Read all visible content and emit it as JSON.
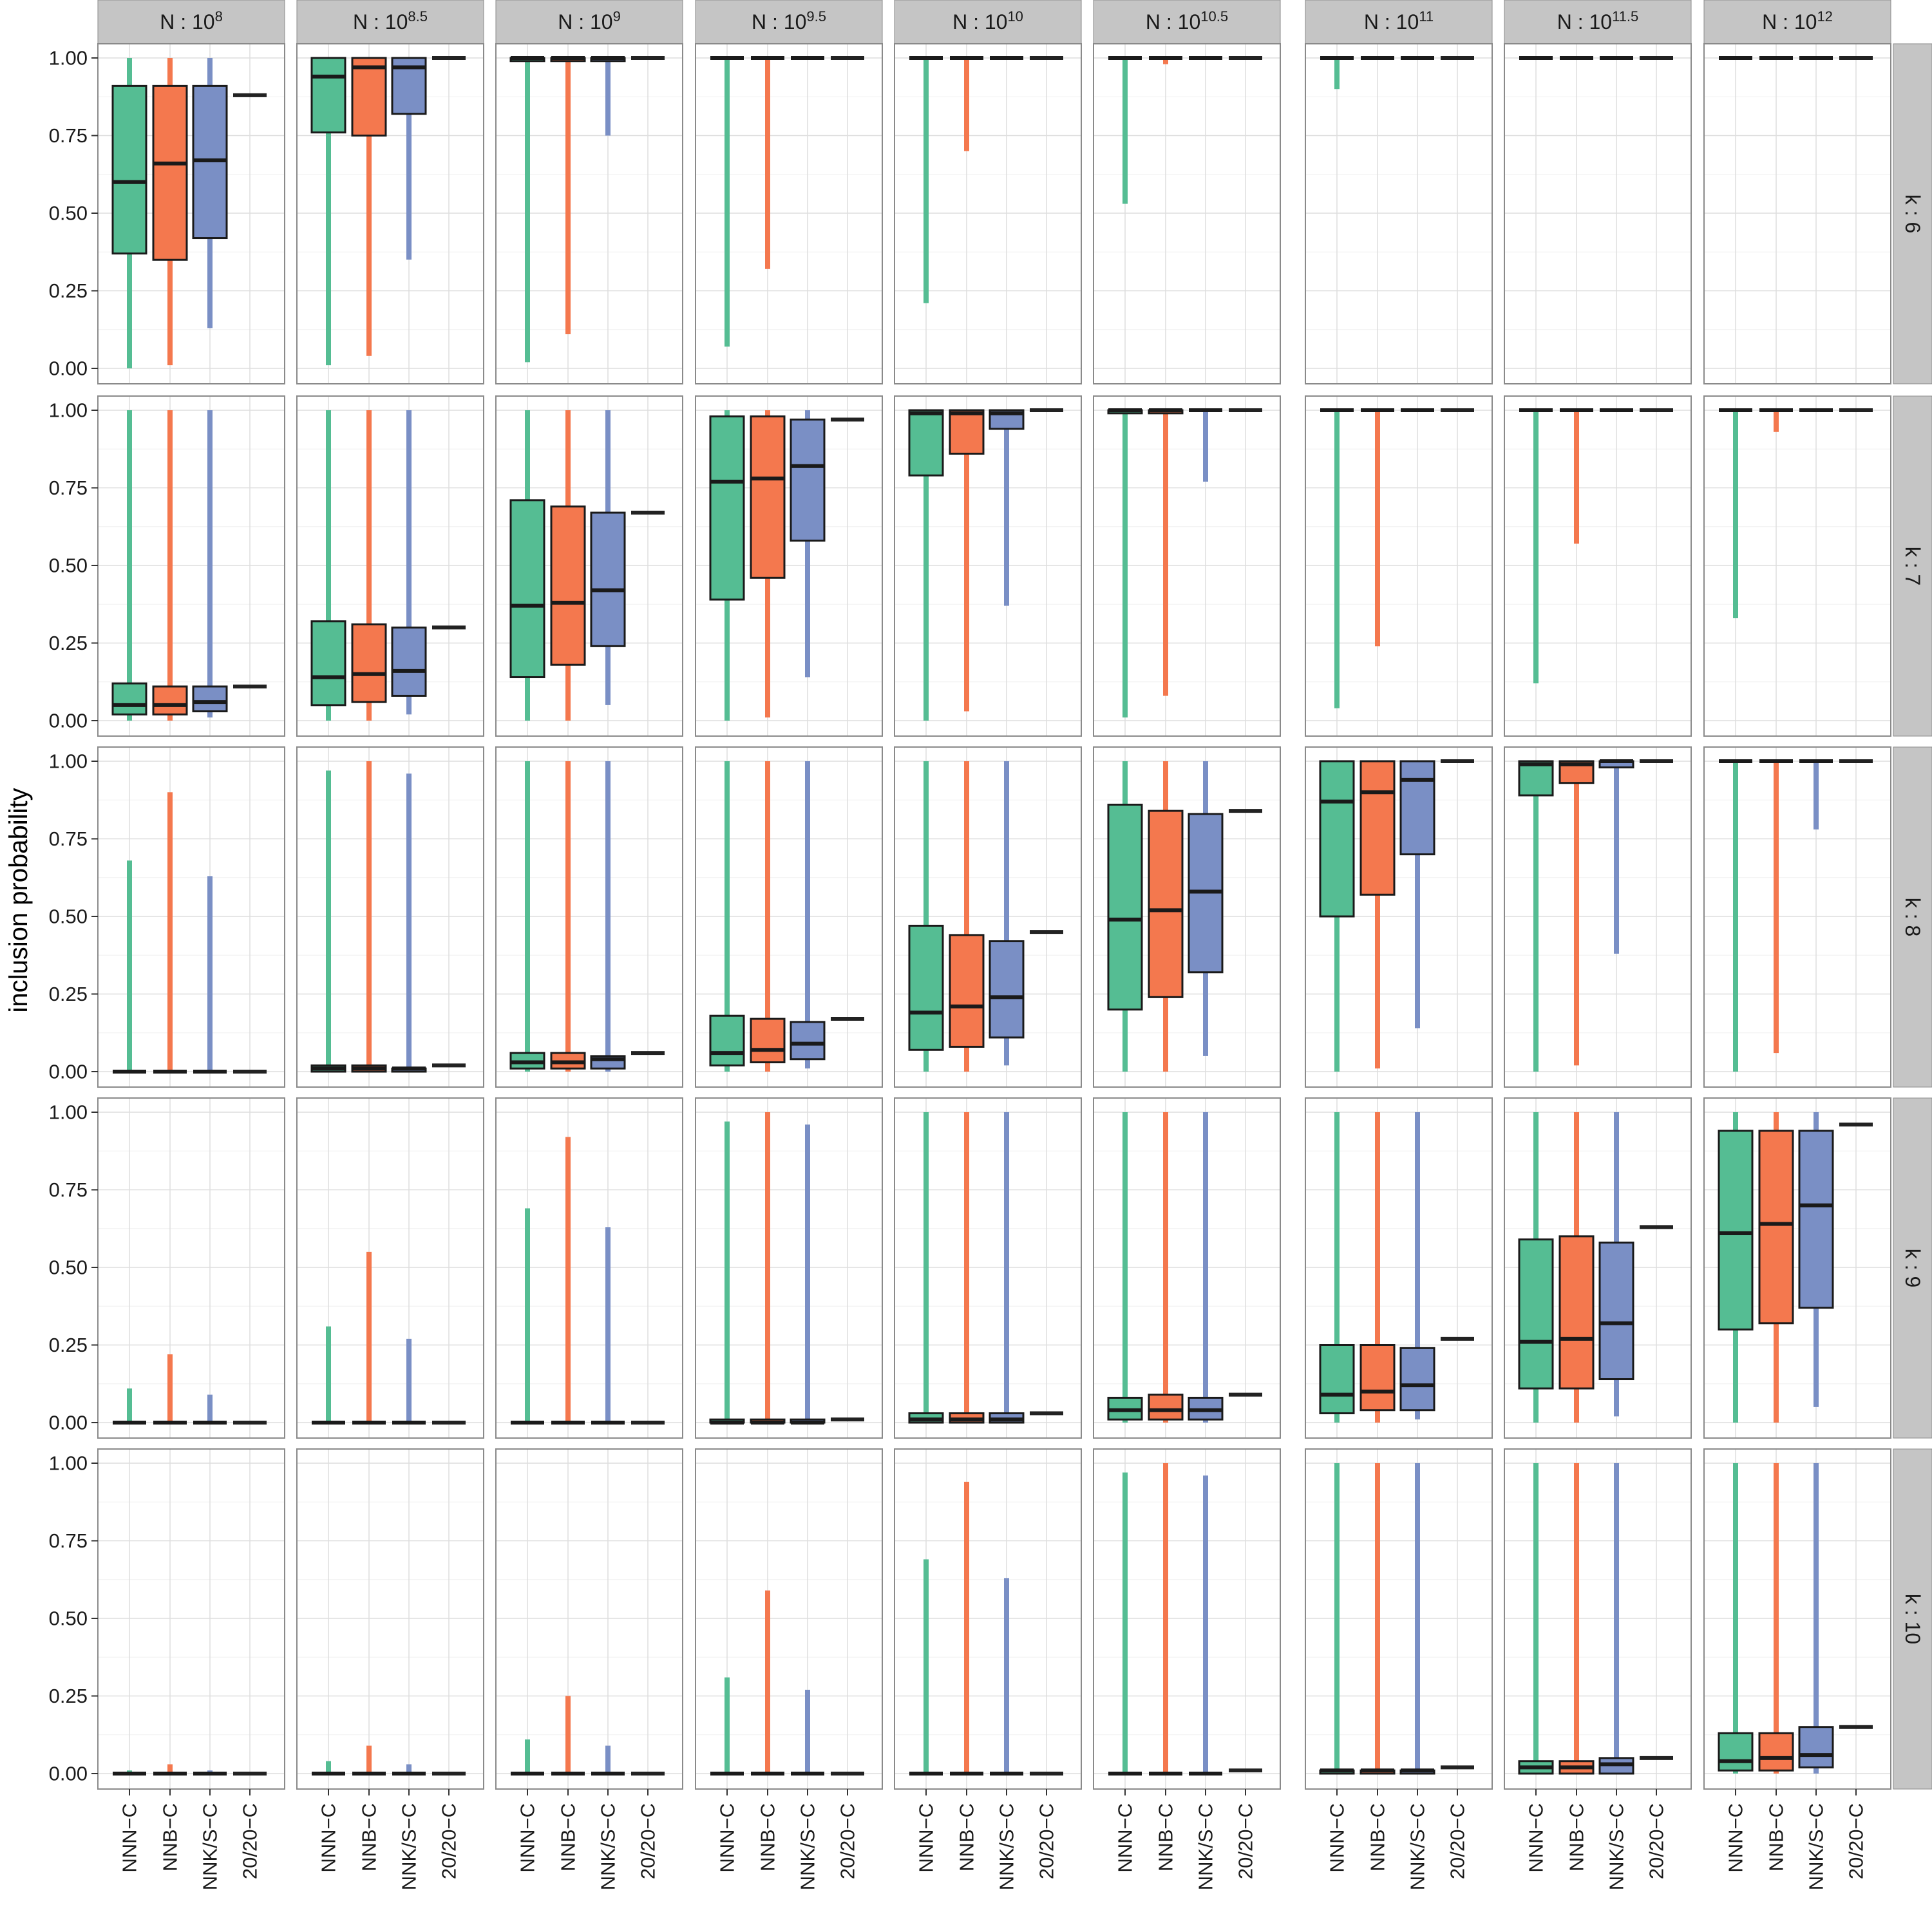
{
  "chart_data": {
    "type": "boxplot",
    "facets": {
      "columns_prefix": "N : ",
      "columns": [
        {
          "base": "10",
          "exp": "8"
        },
        {
          "base": "10",
          "exp": "8.5"
        },
        {
          "base": "10",
          "exp": "9"
        },
        {
          "base": "10",
          "exp": "9.5"
        },
        {
          "base": "10",
          "exp": "10"
        },
        {
          "base": "10",
          "exp": "10.5"
        },
        {
          "base": "10",
          "exp": "11"
        },
        {
          "base": "10",
          "exp": "11.5"
        },
        {
          "base": "10",
          "exp": "12"
        }
      ],
      "rows": [
        "k : 6",
        "k : 7",
        "k : 8",
        "k : 9",
        "k : 10"
      ]
    },
    "categories": [
      "NNN−C",
      "NNB−C",
      "NNK/S−C",
      "20/20−C"
    ],
    "colors": [
      "#55bd93",
      "#f4784e",
      "#7a8fc5",
      "#222222"
    ],
    "ylabel": "inclusion probability",
    "ylim": [
      0,
      1
    ],
    "yticks": [
      "0.00",
      "0.25",
      "0.50",
      "0.75",
      "1.00"
    ],
    "grid": true,
    "note": "each box = [whisker_min, q1, median, q3, whisker_max]; 20/20-C is a single value",
    "panels": [
      [
        [
          [
            0.0,
            0.37,
            0.6,
            0.91,
            1.0
          ],
          [
            0.01,
            0.35,
            0.66,
            0.91,
            1.0
          ],
          [
            0.13,
            0.42,
            0.67,
            0.91,
            1.0
          ],
          0.88
        ],
        [
          [
            0.01,
            0.76,
            0.94,
            1.0,
            1.0
          ],
          [
            0.04,
            0.75,
            0.97,
            1.0,
            1.0
          ],
          [
            0.35,
            0.82,
            0.97,
            1.0,
            1.0
          ],
          1.0
        ],
        [
          [
            0.02,
            0.99,
            1.0,
            1.0,
            1.0
          ],
          [
            0.11,
            0.99,
            1.0,
            1.0,
            1.0
          ],
          [
            0.75,
            0.99,
            1.0,
            1.0,
            1.0
          ],
          1.0
        ],
        [
          [
            0.07,
            1.0,
            1.0,
            1.0,
            1.0
          ],
          [
            0.32,
            1.0,
            1.0,
            1.0,
            1.0
          ],
          [
            1.0,
            1.0,
            1.0,
            1.0,
            1.0
          ],
          1.0
        ],
        [
          [
            0.21,
            1.0,
            1.0,
            1.0,
            1.0
          ],
          [
            0.7,
            1.0,
            1.0,
            1.0,
            1.0
          ],
          [
            1.0,
            1.0,
            1.0,
            1.0,
            1.0
          ],
          1.0
        ],
        [
          [
            0.53,
            1.0,
            1.0,
            1.0,
            1.0
          ],
          [
            0.98,
            1.0,
            1.0,
            1.0,
            1.0
          ],
          [
            1.0,
            1.0,
            1.0,
            1.0,
            1.0
          ],
          1.0
        ],
        [
          [
            0.9,
            1.0,
            1.0,
            1.0,
            1.0
          ],
          [
            1.0,
            1.0,
            1.0,
            1.0,
            1.0
          ],
          [
            1.0,
            1.0,
            1.0,
            1.0,
            1.0
          ],
          1.0
        ],
        [
          [
            1.0,
            1.0,
            1.0,
            1.0,
            1.0
          ],
          [
            1.0,
            1.0,
            1.0,
            1.0,
            1.0
          ],
          [
            1.0,
            1.0,
            1.0,
            1.0,
            1.0
          ],
          1.0
        ],
        [
          [
            1.0,
            1.0,
            1.0,
            1.0,
            1.0
          ],
          [
            1.0,
            1.0,
            1.0,
            1.0,
            1.0
          ],
          [
            1.0,
            1.0,
            1.0,
            1.0,
            1.0
          ],
          1.0
        ]
      ],
      [
        [
          [
            0.0,
            0.02,
            0.05,
            0.12,
            1.0
          ],
          [
            0.0,
            0.02,
            0.05,
            0.11,
            1.0
          ],
          [
            0.01,
            0.03,
            0.06,
            0.11,
            1.0
          ],
          0.11
        ],
        [
          [
            0.0,
            0.05,
            0.14,
            0.32,
            1.0
          ],
          [
            0.0,
            0.06,
            0.15,
            0.31,
            1.0
          ],
          [
            0.02,
            0.08,
            0.16,
            0.3,
            1.0
          ],
          0.3
        ],
        [
          [
            0.0,
            0.14,
            0.37,
            0.71,
            1.0
          ],
          [
            0.0,
            0.18,
            0.38,
            0.69,
            1.0
          ],
          [
            0.05,
            0.24,
            0.42,
            0.67,
            1.0
          ],
          0.67
        ],
        [
          [
            0.0,
            0.39,
            0.77,
            0.98,
            1.0
          ],
          [
            0.01,
            0.46,
            0.78,
            0.98,
            1.0
          ],
          [
            0.14,
            0.58,
            0.82,
            0.97,
            1.0
          ],
          0.97
        ],
        [
          [
            0.0,
            0.79,
            0.99,
            1.0,
            1.0
          ],
          [
            0.03,
            0.86,
            0.99,
            1.0,
            1.0
          ],
          [
            0.37,
            0.94,
            0.99,
            1.0,
            1.0
          ],
          1.0
        ],
        [
          [
            0.01,
            0.99,
            1.0,
            1.0,
            1.0
          ],
          [
            0.08,
            0.99,
            1.0,
            1.0,
            1.0
          ],
          [
            0.77,
            1.0,
            1.0,
            1.0,
            1.0
          ],
          1.0
        ],
        [
          [
            0.04,
            1.0,
            1.0,
            1.0,
            1.0
          ],
          [
            0.24,
            1.0,
            1.0,
            1.0,
            1.0
          ],
          [
            1.0,
            1.0,
            1.0,
            1.0,
            1.0
          ],
          1.0
        ],
        [
          [
            0.12,
            1.0,
            1.0,
            1.0,
            1.0
          ],
          [
            0.57,
            1.0,
            1.0,
            1.0,
            1.0
          ],
          [
            1.0,
            1.0,
            1.0,
            1.0,
            1.0
          ],
          1.0
        ],
        [
          [
            0.33,
            1.0,
            1.0,
            1.0,
            1.0
          ],
          [
            0.93,
            1.0,
            1.0,
            1.0,
            1.0
          ],
          [
            1.0,
            1.0,
            1.0,
            1.0,
            1.0
          ],
          1.0
        ]
      ],
      [
        [
          [
            0.0,
            0.0,
            0.0,
            0.0,
            0.68
          ],
          [
            0.0,
            0.0,
            0.0,
            0.0,
            0.9
          ],
          [
            0.0,
            0.0,
            0.0,
            0.0,
            0.63
          ],
          0.0
        ],
        [
          [
            0.0,
            0.0,
            0.01,
            0.02,
            0.97
          ],
          [
            0.0,
            0.0,
            0.01,
            0.02,
            1.0
          ],
          [
            0.0,
            0.0,
            0.01,
            0.01,
            0.96
          ],
          0.02
        ],
        [
          [
            0.0,
            0.01,
            0.03,
            0.06,
            1.0
          ],
          [
            0.0,
            0.01,
            0.03,
            0.06,
            1.0
          ],
          [
            0.0,
            0.01,
            0.04,
            0.05,
            1.0
          ],
          0.06
        ],
        [
          [
            0.0,
            0.02,
            0.06,
            0.18,
            1.0
          ],
          [
            0.0,
            0.03,
            0.07,
            0.17,
            1.0
          ],
          [
            0.01,
            0.04,
            0.09,
            0.16,
            1.0
          ],
          0.17
        ],
        [
          [
            0.0,
            0.07,
            0.19,
            0.47,
            1.0
          ],
          [
            0.0,
            0.08,
            0.21,
            0.44,
            1.0
          ],
          [
            0.02,
            0.11,
            0.24,
            0.42,
            1.0
          ],
          0.45
        ],
        [
          [
            0.0,
            0.2,
            0.49,
            0.86,
            1.0
          ],
          [
            0.0,
            0.24,
            0.52,
            0.84,
            1.0
          ],
          [
            0.05,
            0.32,
            0.58,
            0.83,
            1.0
          ],
          0.84
        ],
        [
          [
            0.0,
            0.5,
            0.87,
            1.0,
            1.0
          ],
          [
            0.01,
            0.57,
            0.9,
            1.0,
            1.0
          ],
          [
            0.14,
            0.7,
            0.94,
            1.0,
            1.0
          ],
          1.0
        ],
        [
          [
            0.0,
            0.89,
            0.99,
            1.0,
            1.0
          ],
          [
            0.02,
            0.93,
            0.99,
            1.0,
            1.0
          ],
          [
            0.38,
            0.98,
            1.0,
            1.0,
            1.0
          ],
          1.0
        ],
        [
          [
            0.0,
            1.0,
            1.0,
            1.0,
            1.0
          ],
          [
            0.06,
            1.0,
            1.0,
            1.0,
            1.0
          ],
          [
            0.78,
            1.0,
            1.0,
            1.0,
            1.0
          ],
          1.0
        ]
      ],
      [
        [
          [
            0.0,
            0.0,
            0.0,
            0.0,
            0.11
          ],
          [
            0.0,
            0.0,
            0.0,
            0.0,
            0.22
          ],
          [
            0.0,
            0.0,
            0.0,
            0.0,
            0.09
          ],
          0.0
        ],
        [
          [
            0.0,
            0.0,
            0.0,
            0.0,
            0.31
          ],
          [
            0.0,
            0.0,
            0.0,
            0.0,
            0.55
          ],
          [
            0.0,
            0.0,
            0.0,
            0.0,
            0.27
          ],
          0.0
        ],
        [
          [
            0.0,
            0.0,
            0.0,
            0.0,
            0.69
          ],
          [
            0.0,
            0.0,
            0.0,
            0.0,
            0.92
          ],
          [
            0.0,
            0.0,
            0.0,
            0.0,
            0.63
          ],
          0.0
        ],
        [
          [
            0.0,
            0.0,
            0.0,
            0.01,
            0.97
          ],
          [
            0.0,
            0.0,
            0.0,
            0.01,
            1.0
          ],
          [
            0.0,
            0.0,
            0.0,
            0.01,
            0.96
          ],
          0.01
        ],
        [
          [
            0.0,
            0.0,
            0.01,
            0.03,
            1.0
          ],
          [
            0.0,
            0.0,
            0.01,
            0.03,
            1.0
          ],
          [
            0.0,
            0.0,
            0.01,
            0.03,
            1.0
          ],
          0.03
        ],
        [
          [
            0.0,
            0.01,
            0.04,
            0.08,
            1.0
          ],
          [
            0.0,
            0.01,
            0.04,
            0.09,
            1.0
          ],
          [
            0.0,
            0.01,
            0.04,
            0.08,
            1.0
          ],
          0.09
        ],
        [
          [
            0.0,
            0.03,
            0.09,
            0.25,
            1.0
          ],
          [
            0.0,
            0.04,
            0.1,
            0.25,
            1.0
          ],
          [
            0.01,
            0.04,
            0.12,
            0.24,
            1.0
          ],
          0.27
        ],
        [
          [
            0.0,
            0.11,
            0.26,
            0.59,
            1.0
          ],
          [
            0.0,
            0.11,
            0.27,
            0.6,
            1.0
          ],
          [
            0.02,
            0.14,
            0.32,
            0.58,
            1.0
          ],
          0.63
        ],
        [
          [
            0.0,
            0.3,
            0.61,
            0.94,
            1.0
          ],
          [
            0.0,
            0.32,
            0.64,
            0.94,
            1.0
          ],
          [
            0.05,
            0.37,
            0.7,
            0.94,
            1.0
          ],
          0.96
        ]
      ],
      [
        [
          [
            0.0,
            0.0,
            0.0,
            0.0,
            0.01
          ],
          [
            0.0,
            0.0,
            0.0,
            0.0,
            0.03
          ],
          [
            0.0,
            0.0,
            0.0,
            0.0,
            0.01
          ],
          0.0
        ],
        [
          [
            0.0,
            0.0,
            0.0,
            0.0,
            0.04
          ],
          [
            0.0,
            0.0,
            0.0,
            0.0,
            0.09
          ],
          [
            0.0,
            0.0,
            0.0,
            0.0,
            0.03
          ],
          0.0
        ],
        [
          [
            0.0,
            0.0,
            0.0,
            0.0,
            0.11
          ],
          [
            0.0,
            0.0,
            0.0,
            0.0,
            0.25
          ],
          [
            0.0,
            0.0,
            0.0,
            0.0,
            0.09
          ],
          0.0
        ],
        [
          [
            0.0,
            0.0,
            0.0,
            0.0,
            0.31
          ],
          [
            0.0,
            0.0,
            0.0,
            0.0,
            0.59
          ],
          [
            0.0,
            0.0,
            0.0,
            0.0,
            0.27
          ],
          0.0
        ],
        [
          [
            0.0,
            0.0,
            0.0,
            0.0,
            0.69
          ],
          [
            0.0,
            0.0,
            0.0,
            0.0,
            0.94
          ],
          [
            0.0,
            0.0,
            0.0,
            0.0,
            0.63
          ],
          0.0
        ],
        [
          [
            0.0,
            0.0,
            0.0,
            0.0,
            0.97
          ],
          [
            0.0,
            0.0,
            0.0,
            0.0,
            1.0
          ],
          [
            0.0,
            0.0,
            0.0,
            0.0,
            0.96
          ],
          0.01
        ],
        [
          [
            0.0,
            0.0,
            0.01,
            0.01,
            1.0
          ],
          [
            0.0,
            0.0,
            0.01,
            0.01,
            1.0
          ],
          [
            0.0,
            0.0,
            0.01,
            0.01,
            1.0
          ],
          0.02
        ],
        [
          [
            0.0,
            0.0,
            0.02,
            0.04,
            1.0
          ],
          [
            0.0,
            0.0,
            0.02,
            0.04,
            1.0
          ],
          [
            0.0,
            0.0,
            0.03,
            0.05,
            1.0
          ],
          0.05
        ],
        [
          [
            0.0,
            0.01,
            0.04,
            0.13,
            1.0
          ],
          [
            0.0,
            0.01,
            0.05,
            0.13,
            1.0
          ],
          [
            0.0,
            0.02,
            0.06,
            0.15,
            1.0
          ],
          0.15
        ]
      ]
    ]
  }
}
